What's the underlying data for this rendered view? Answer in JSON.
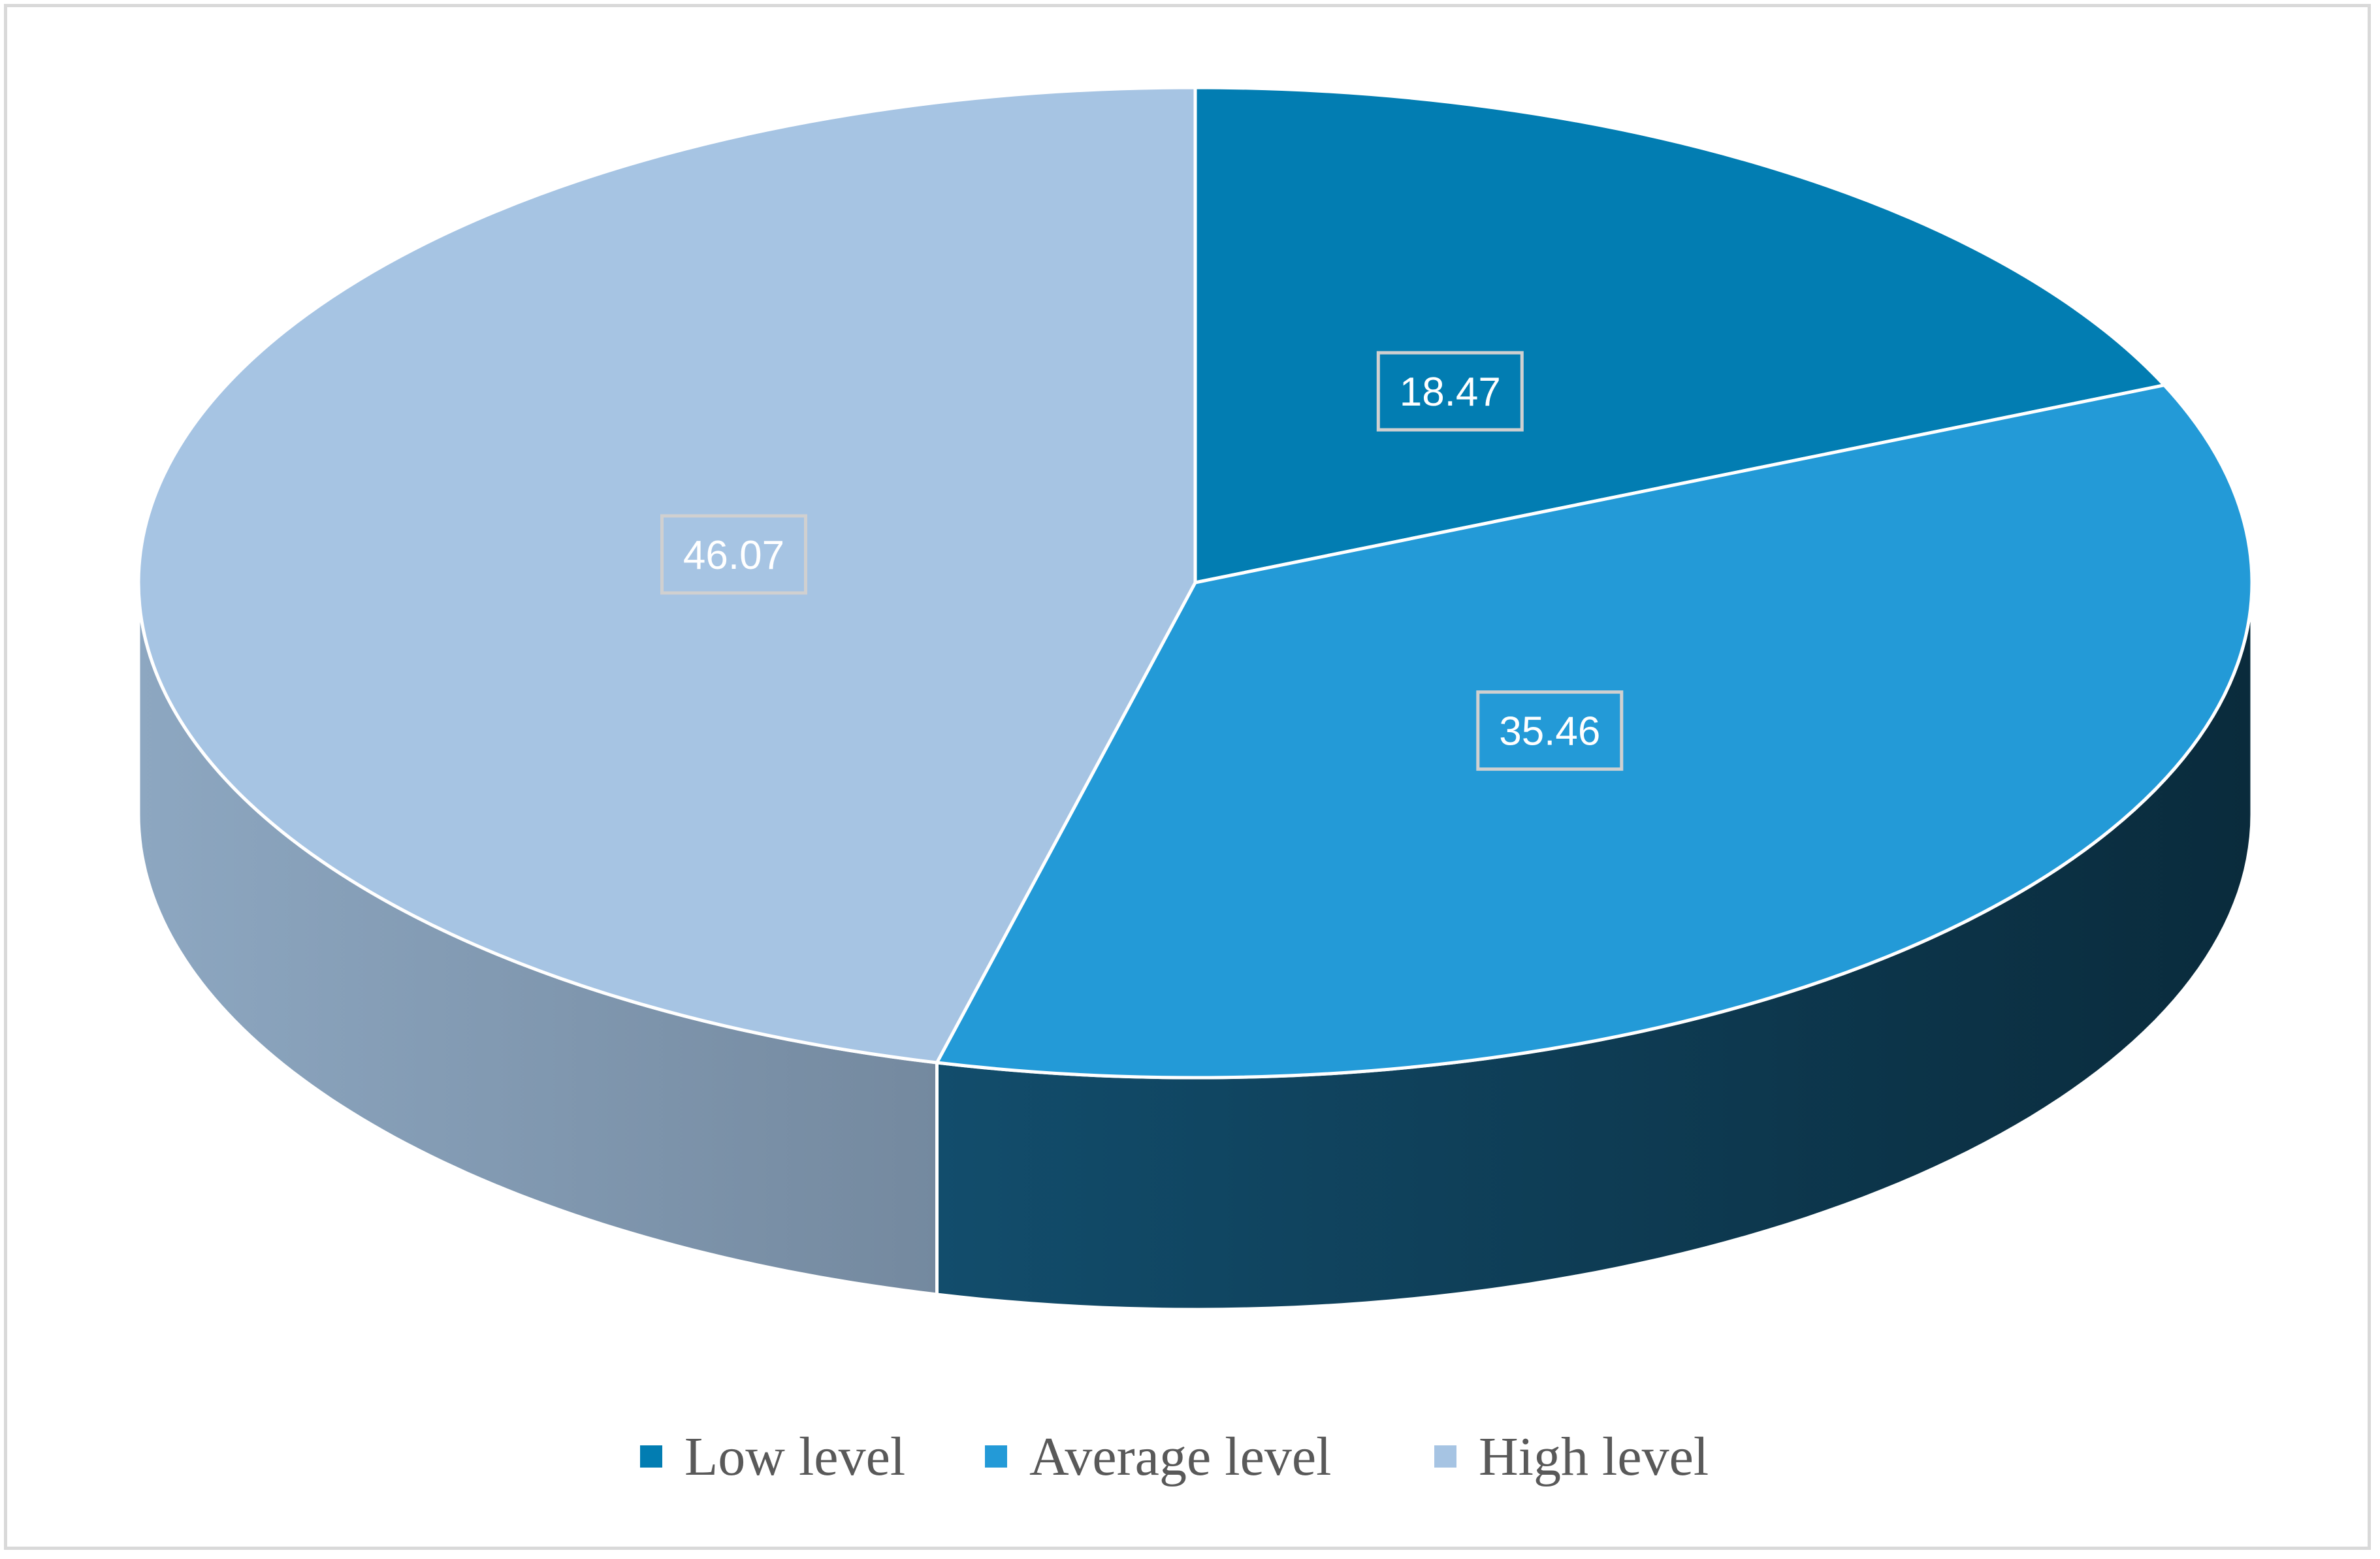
{
  "chart_data": {
    "type": "pie",
    "style": "3d",
    "categories": [
      "Low level",
      "Average level",
      "High level"
    ],
    "values": [
      18.47,
      35.46,
      46.07
    ],
    "data_labels": [
      "18.47",
      "35.46",
      "46.07"
    ],
    "colors": [
      "#027db2",
      "#239ad7",
      "#a6c4e3"
    ],
    "legend": {
      "position": "bottom",
      "entries": [
        "Low level",
        "Average level",
        "High level"
      ]
    },
    "title": "",
    "grid": false
  }
}
